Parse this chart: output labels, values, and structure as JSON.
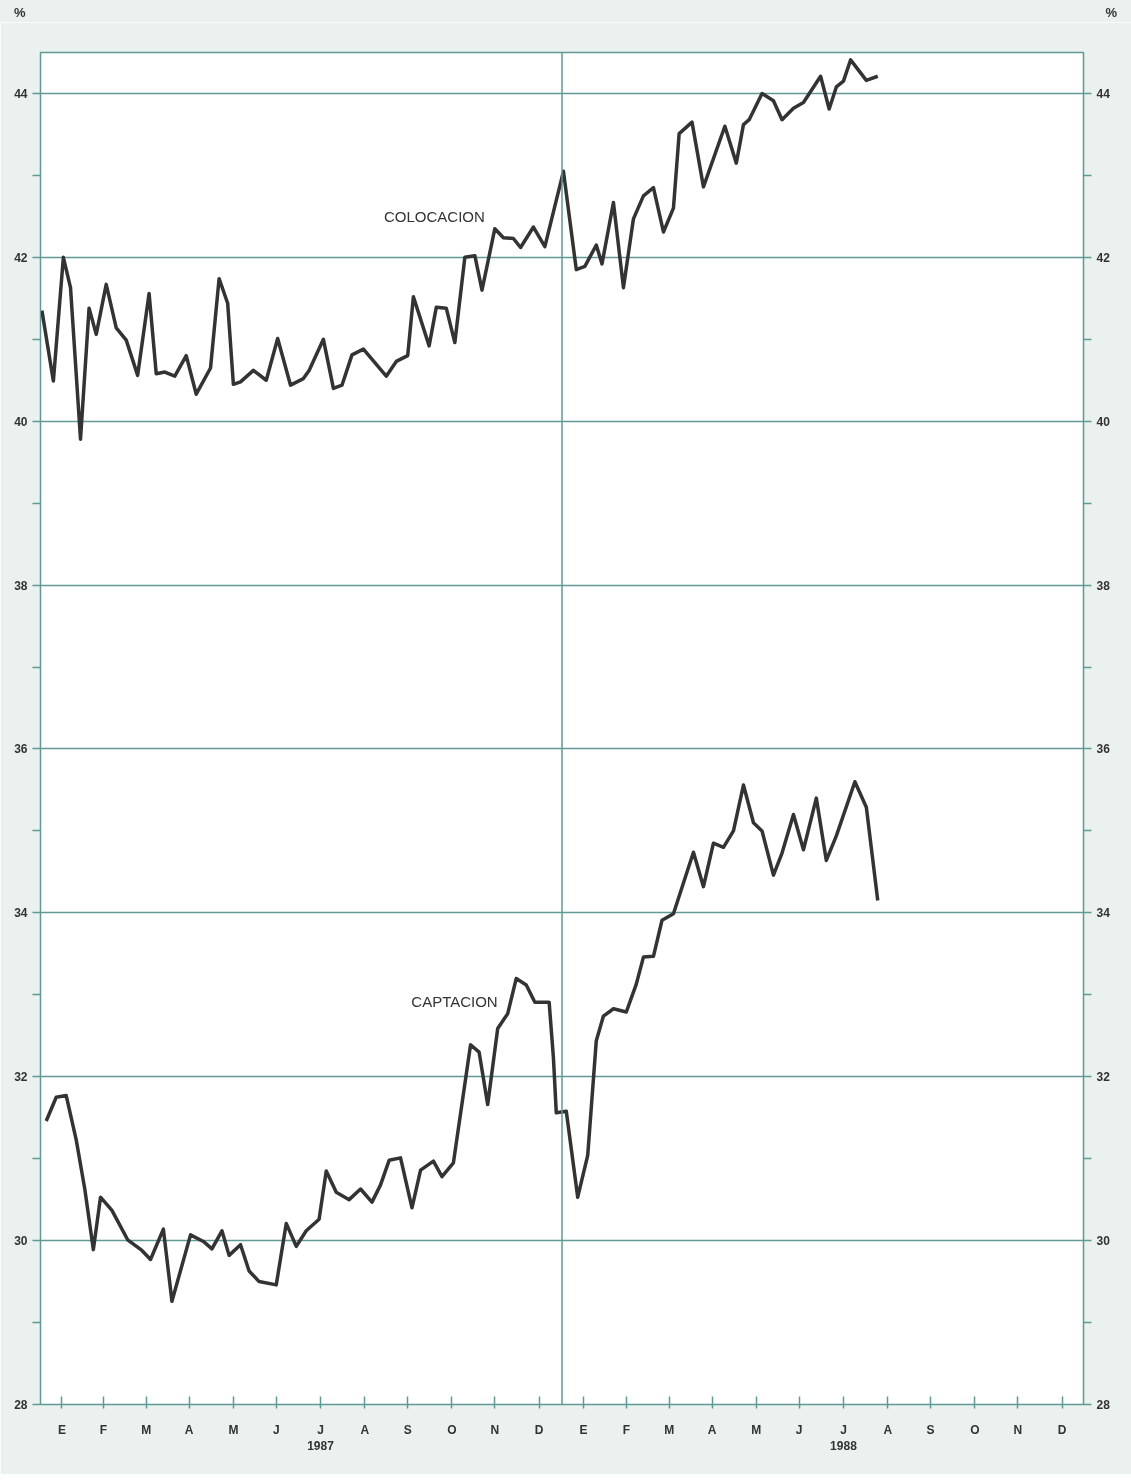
{
  "chart_data": {
    "type": "line",
    "ylabel": "%",
    "y2label": "%",
    "xlim": [
      "1987-01-01",
      "1988-12-31"
    ],
    "xticks": [
      {
        "value": "1987-01-16",
        "label": "E"
      },
      {
        "value": "1987-02-14",
        "label": "F"
      },
      {
        "value": "1987-03-16",
        "label": "M"
      },
      {
        "value": "1987-04-15",
        "label": "A"
      },
      {
        "value": "1987-05-16",
        "label": "M"
      },
      {
        "value": "1987-06-15",
        "label": "J"
      },
      {
        "value": "1987-07-16",
        "label": "J\n1987"
      },
      {
        "value": "1987-08-16",
        "label": "A"
      },
      {
        "value": "1987-09-15",
        "label": "S"
      },
      {
        "value": "1987-10-16",
        "label": "O"
      },
      {
        "value": "1987-11-15",
        "label": "N"
      },
      {
        "value": "1987-12-16",
        "label": "D"
      },
      {
        "value": "1988-01-16",
        "label": "E"
      },
      {
        "value": "1988-02-15",
        "label": "F"
      },
      {
        "value": "1988-03-16",
        "label": "M"
      },
      {
        "value": "1988-04-15",
        "label": "A"
      },
      {
        "value": "1988-05-16",
        "label": "M"
      },
      {
        "value": "1988-06-15",
        "label": "J"
      },
      {
        "value": "1988-07-16",
        "label": "J\n1988"
      },
      {
        "value": "1988-08-16",
        "label": "A"
      },
      {
        "value": "1988-09-15",
        "label": "S"
      },
      {
        "value": "1988-10-16",
        "label": "O"
      },
      {
        "value": "1988-11-15",
        "label": "N"
      },
      {
        "value": "1988-12-16",
        "label": "D"
      }
    ],
    "ylim": [
      28,
      44.5
    ],
    "yticks": [
      28,
      {
        "value": 29,
        "label": null
      },
      30,
      {
        "value": 31,
        "label": null
      },
      32,
      {
        "value": 33,
        "label": null
      },
      34,
      {
        "value": 35,
        "label": null
      },
      36,
      {
        "value": 37,
        "label": null
      },
      38,
      {
        "value": 39,
        "label": null
      },
      40,
      {
        "value": 41,
        "label": null
      },
      42,
      {
        "value": 43,
        "label": null
      },
      44
    ],
    "y2lim": [
      28,
      44.5
    ],
    "y2ticks": [
      28,
      {
        "value": 29,
        "label": null
      },
      30,
      {
        "value": 31,
        "label": null
      },
      32,
      {
        "value": 33,
        "label": null
      },
      34,
      {
        "value": 35,
        "label": null
      },
      36,
      {
        "value": 37,
        "label": null
      },
      38,
      {
        "value": 39,
        "label": null
      },
      40,
      {
        "value": 41,
        "label": null
      },
      42,
      {
        "value": 43,
        "label": null
      },
      44
    ],
    "grid": "y",
    "legend": false,
    "marker": "none",
    "line_style": "solid",
    "ref_lines": [
      {
        "axis": "x",
        "value": "1988-01-01",
        "label": null,
        "color": "#5f9a94"
      }
    ],
    "series": [
      {
        "name": "COLOCACION",
        "color": "#333333",
        "x": [
          "1987-01-02",
          "1987-01-10",
          "1987-01-17",
          "1987-01-22",
          "1987-01-29",
          "1987-02-04",
          "1987-02-09",
          "1987-02-16",
          "1987-02-23",
          "1987-03-02",
          "1987-03-10",
          "1987-03-18",
          "1987-03-23",
          "1987-03-29",
          "1987-04-05",
          "1987-04-13",
          "1987-04-20",
          "1987-04-30",
          "1987-05-06",
          "1987-05-12",
          "1987-05-16",
          "1987-05-21",
          "1987-05-30",
          "1987-06-08",
          "1987-06-16",
          "1987-06-25",
          "1987-07-04",
          "1987-07-08",
          "1987-07-18",
          "1987-07-25",
          "1987-07-31",
          "1987-08-07",
          "1987-08-15",
          "1987-08-31",
          "1987-09-07",
          "1987-09-15",
          "1987-09-19",
          "1987-09-30",
          "1987-10-05",
          "1987-10-12",
          "1987-10-18",
          "1987-10-25",
          "1987-11-01",
          "1987-11-06",
          "1987-11-15",
          "1987-11-21",
          "1987-11-28",
          "1987-12-03",
          "1987-12-12",
          "1987-12-20",
          "1988-01-02",
          "1988-01-11",
          "1988-01-17",
          "1988-01-25",
          "1988-01-29",
          "1988-02-06",
          "1988-02-13",
          "1988-02-20",
          "1988-02-27",
          "1988-03-05",
          "1988-03-12",
          "1988-03-19",
          "1988-03-23",
          "1988-04-01",
          "1988-04-09",
          "1988-04-24",
          "1988-05-02",
          "1988-05-07",
          "1988-05-11",
          "1988-05-20",
          "1988-05-28",
          "1988-06-03",
          "1988-06-11",
          "1988-06-18",
          "1988-06-30",
          "1988-07-06",
          "1988-07-11",
          "1988-07-16",
          "1988-07-21",
          "1988-08-01",
          "1988-08-09"
        ],
        "values": [
          41.35,
          40.49,
          42.0,
          41.63,
          39.78,
          41.38,
          41.06,
          41.67,
          41.14,
          40.99,
          40.56,
          41.56,
          40.58,
          40.6,
          40.55,
          40.8,
          40.33,
          40.65,
          41.74,
          41.44,
          40.45,
          40.48,
          40.62,
          40.5,
          41.01,
          40.44,
          40.52,
          40.62,
          41.0,
          40.4,
          40.44,
          40.81,
          40.88,
          40.55,
          40.73,
          40.8,
          41.52,
          40.92,
          41.39,
          41.38,
          40.96,
          42.0,
          42.02,
          41.6,
          42.35,
          42.24,
          42.23,
          42.12,
          42.37,
          42.13,
          43.05,
          41.85,
          41.89,
          42.15,
          41.92,
          42.67,
          41.63,
          42.47,
          42.75,
          42.85,
          42.31,
          42.6,
          43.51,
          43.65,
          42.86,
          43.6,
          43.15,
          43.62,
          43.68,
          44.0,
          43.91,
          43.68,
          43.82,
          43.89,
          44.21,
          43.81,
          44.08,
          44.15,
          44.41,
          44.16,
          44.21
        ]
      },
      {
        "name": "CAPTACION",
        "color": "#333333",
        "x": [
          "1987-01-05",
          "1987-01-12",
          "1987-01-19",
          "1987-01-26",
          "1987-02-01",
          "1987-02-07",
          "1987-02-12",
          "1987-02-20",
          "1987-03-03",
          "1987-03-13",
          "1987-03-19",
          "1987-03-28",
          "1987-04-03",
          "1987-04-16",
          "1987-04-25",
          "1987-05-01",
          "1987-05-08",
          "1987-05-13",
          "1987-05-21",
          "1987-05-27",
          "1987-06-03",
          "1987-06-15",
          "1987-06-22",
          "1987-06-29",
          "1987-07-06",
          "1987-07-15",
          "1987-07-20",
          "1987-07-27",
          "1987-08-05",
          "1987-08-13",
          "1987-08-21",
          "1987-08-27",
          "1987-09-02",
          "1987-09-10",
          "1987-09-18",
          "1987-09-24",
          "1987-10-03",
          "1987-10-09",
          "1987-10-17",
          "1987-10-23",
          "1987-10-29",
          "1987-11-04",
          "1987-11-10",
          "1987-11-17",
          "1987-11-24",
          "1987-11-30",
          "1987-12-07",
          "1987-12-13",
          "1987-12-23",
          "1987-12-26",
          "1987-12-28",
          "1988-01-04",
          "1988-01-12",
          "1988-01-19",
          "1988-01-25",
          "1988-01-30",
          "1988-02-06",
          "1988-02-15",
          "1988-02-22",
          "1988-02-27",
          "1988-03-05",
          "1988-03-11",
          "1988-03-19",
          "1988-04-02",
          "1988-04-09",
          "1988-04-16",
          "1988-04-23",
          "1988-04-30",
          "1988-05-07",
          "1988-05-14",
          "1988-05-20",
          "1988-05-28",
          "1988-06-03",
          "1988-06-11",
          "1988-06-18",
          "1988-06-27",
          "1988-07-04",
          "1988-07-11",
          "1988-07-24",
          "1988-08-01",
          "1988-08-09"
        ],
        "values": [
          31.46,
          31.75,
          31.77,
          31.23,
          30.63,
          29.89,
          30.53,
          30.37,
          30.01,
          29.88,
          29.77,
          30.14,
          29.26,
          30.07,
          29.99,
          29.9,
          30.12,
          29.82,
          29.95,
          29.63,
          29.5,
          29.46,
          30.21,
          29.93,
          30.12,
          30.26,
          30.85,
          30.59,
          30.5,
          30.63,
          30.47,
          30.68,
          30.98,
          31.01,
          30.4,
          30.86,
          30.97,
          30.78,
          30.95,
          31.67,
          32.39,
          32.3,
          31.66,
          32.59,
          32.77,
          33.2,
          33.12,
          32.91,
          32.91,
          32.23,
          31.56,
          31.58,
          30.53,
          31.04,
          32.44,
          32.74,
          32.83,
          32.79,
          33.13,
          33.46,
          33.47,
          33.91,
          33.99,
          34.74,
          34.32,
          34.85,
          34.8,
          35.0,
          35.56,
          35.1,
          35.0,
          34.46,
          34.73,
          35.2,
          34.77,
          35.4,
          34.64,
          34.94,
          35.6,
          35.29,
          34.15
        ]
      }
    ]
  }
}
